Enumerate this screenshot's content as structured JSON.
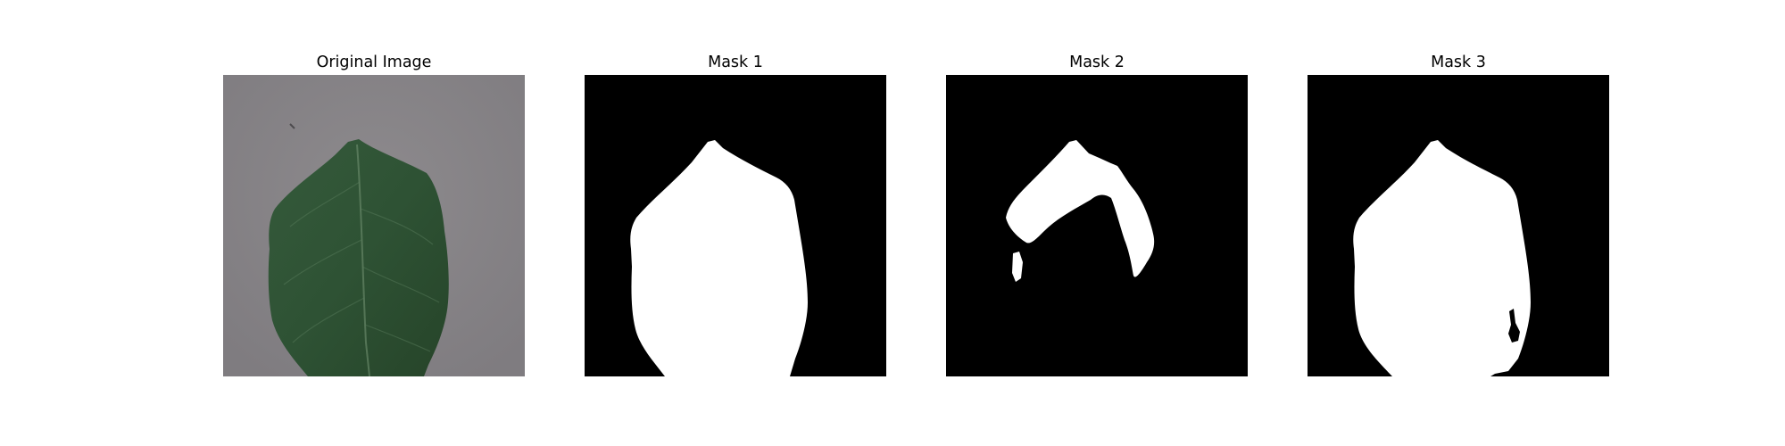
{
  "panels": [
    {
      "title": "Original Image"
    },
    {
      "title": "Mask 1"
    },
    {
      "title": "Mask 2"
    },
    {
      "title": "Mask 3"
    }
  ],
  "colors": {
    "background": "#888588",
    "leaf_dark": "#2a4a2e",
    "leaf_mid": "#3c6242",
    "leaf_light": "#4f7a55",
    "mask_background": "#000000",
    "mask_foreground": "#ffffff"
  }
}
